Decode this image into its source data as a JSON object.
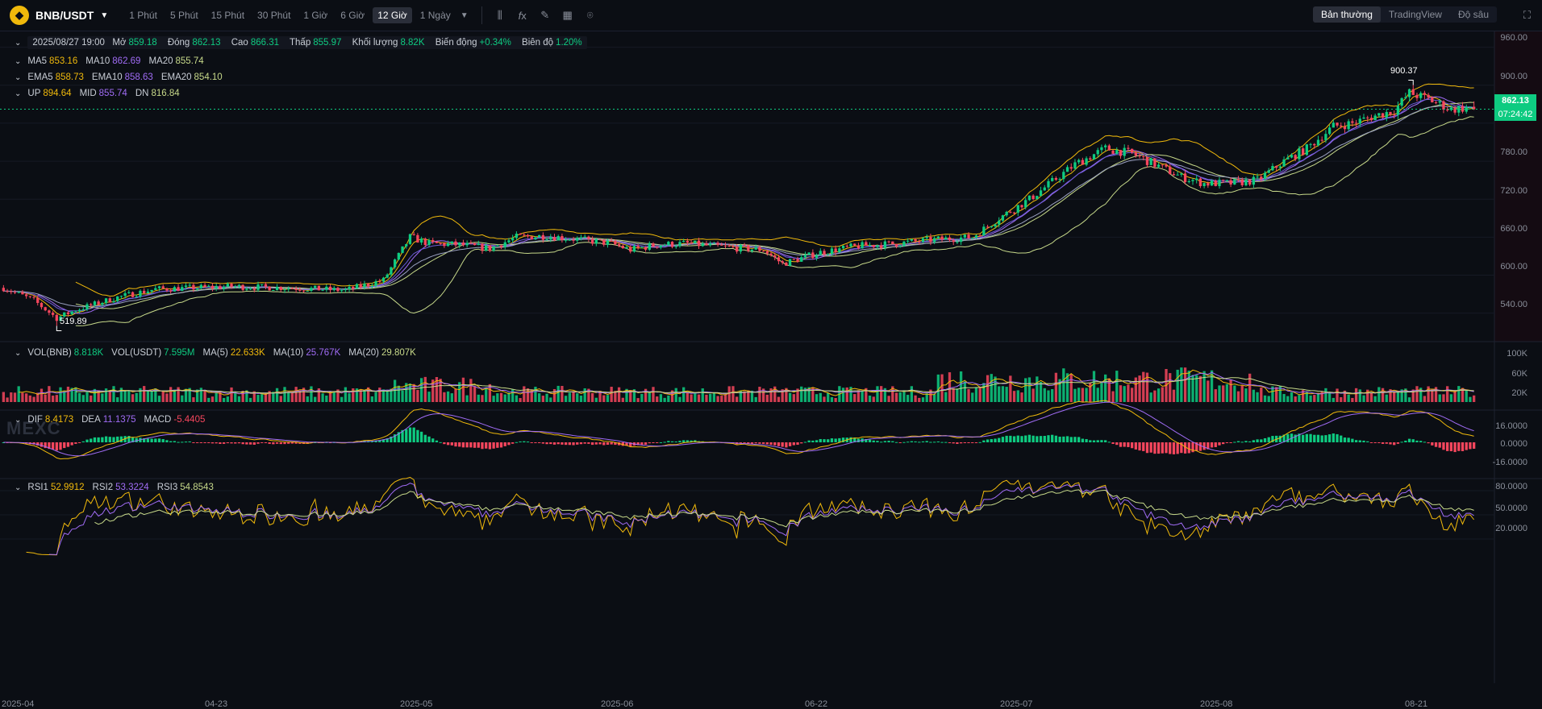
{
  "toolbar": {
    "pair": "BNB/USDT",
    "intervals": [
      "1 Phút",
      "5 Phút",
      "15 Phút",
      "30 Phút",
      "1 Giờ",
      "6 Giờ",
      "12 Giờ",
      "1 Ngày"
    ],
    "active_interval": "12 Giờ",
    "views": [
      "Bản thường",
      "TradingView",
      "Độ sâu"
    ],
    "active_view": "Bản thường",
    "tool_icons": [
      "candle-type-icon",
      "indicator-fx-icon",
      "draw-pencil-icon",
      "layout-grid-icon",
      "camera-icon"
    ]
  },
  "ohlc": {
    "date": "2025/08/27 19:00",
    "open_label": "Mở",
    "open": "859.18",
    "close_label": "Đóng",
    "close": "862.13",
    "high_label": "Cao",
    "high": "866.31",
    "low_label": "Thấp",
    "low": "855.97",
    "vol_label": "Khối lượng",
    "vol": "8.82K",
    "chg_label": "Biến động",
    "chg": "+0.34%",
    "amp_label": "Biên độ",
    "amp": "1.20%"
  },
  "ma": {
    "ma5_label": "MA5",
    "ma5": "853.16",
    "ma10_label": "MA10",
    "ma10": "862.69",
    "ma20_label": "MA20",
    "ma20": "855.74"
  },
  "ema": {
    "ema5_label": "EMA5",
    "ema5": "858.73",
    "ema10_label": "EMA10",
    "ema10": "858.63",
    "ema20_label": "EMA20",
    "ema20": "854.10"
  },
  "boll": {
    "up_label": "UP",
    "up": "894.64",
    "mid_label": "MID",
    "mid": "855.74",
    "dn_label": "DN",
    "dn": "816.84"
  },
  "vol": {
    "vol_bnb_label": "VOL(BNB)",
    "vol_bnb": "8.818K",
    "vol_usdt_label": "VOL(USDT)",
    "vol_usdt": "7.595M",
    "ma5_label": "MA(5)",
    "ma5": "22.633K",
    "ma10_label": "MA(10)",
    "ma10": "25.767K",
    "ma20_label": "MA(20)",
    "ma20": "29.807K"
  },
  "macd": {
    "dif_label": "DIF",
    "dif": "8.4173",
    "dea_label": "DEA",
    "dea": "11.1375",
    "macd_label": "MACD",
    "macd": "-5.4405"
  },
  "rsi": {
    "rsi1_label": "RSI1",
    "rsi1": "52.9912",
    "rsi2_label": "RSI2",
    "rsi2": "53.3224",
    "rsi3_label": "RSI3",
    "rsi3": "54.8543"
  },
  "price_axis": [
    "960.00",
    "900.00",
    "840.00",
    "780.00",
    "720.00",
    "660.00",
    "600.00",
    "540.00"
  ],
  "vol_axis": [
    "100K",
    "60K",
    "20K"
  ],
  "macd_axis": [
    "16.0000",
    "0.0000",
    "-16.0000"
  ],
  "rsi_axis": [
    "80.0000",
    "50.0000",
    "20.0000"
  ],
  "current_price": "862.13",
  "countdown": "07:24:42",
  "high_annotation": "900.37",
  "low_annotation": "519.89",
  "watermark": "MEXC",
  "colors": {
    "up": "#0ecb81",
    "down": "#f6465d",
    "ma5": "#f0b90b",
    "ma10": "#a06cf5",
    "ma20": "#c7d98a",
    "line1": "#f0a930",
    "line2": "#8c6cf2",
    "line3": "#9fc38a"
  },
  "chart_data": {
    "type": "candlestick",
    "x_ticks": [
      "2025-04",
      "04-23",
      "2025-05",
      "2025-06",
      "06-22",
      "2025-07",
      "2025-08",
      "08-21"
    ],
    "ylim": [
      495,
      985
    ],
    "key_points": [
      [
        0,
        580
      ],
      [
        8,
        560
      ],
      [
        14,
        532
      ],
      [
        19,
        545
      ],
      [
        30,
        565
      ],
      [
        40,
        578
      ],
      [
        60,
        582
      ],
      [
        75,
        580
      ],
      [
        90,
        576
      ],
      [
        100,
        592
      ],
      [
        107,
        660
      ],
      [
        112,
        650
      ],
      [
        120,
        648
      ],
      [
        128,
        642
      ],
      [
        135,
        660
      ],
      [
        143,
        662
      ],
      [
        152,
        656
      ],
      [
        160,
        650
      ],
      [
        165,
        640
      ],
      [
        172,
        648
      ],
      [
        180,
        650
      ],
      [
        190,
        644
      ],
      [
        200,
        640
      ],
      [
        205,
        618
      ],
      [
        215,
        636
      ],
      [
        225,
        646
      ],
      [
        235,
        650
      ],
      [
        245,
        656
      ],
      [
        255,
        660
      ],
      [
        262,
        690
      ],
      [
        270,
        720
      ],
      [
        282,
        775
      ],
      [
        290,
        800
      ],
      [
        297,
        792
      ],
      [
        303,
        775
      ],
      [
        310,
        755
      ],
      [
        316,
        745
      ],
      [
        323,
        745
      ],
      [
        330,
        750
      ],
      [
        337,
        780
      ],
      [
        343,
        800
      ],
      [
        350,
        835
      ],
      [
        355,
        840
      ],
      [
        360,
        850
      ],
      [
        366,
        860
      ],
      [
        370,
        888
      ],
      [
        375,
        878
      ],
      [
        381,
        862
      ],
      [
        386,
        865
      ]
    ],
    "high_annotation": 900.37,
    "low_annotation": 519.89,
    "last_close": 862.13
  }
}
